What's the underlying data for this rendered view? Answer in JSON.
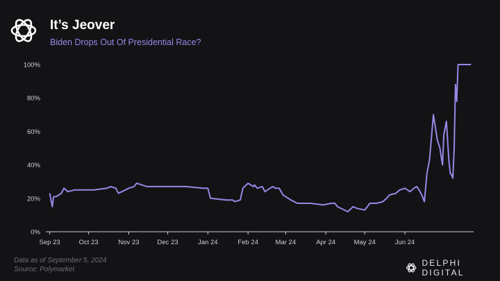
{
  "header": {
    "title": "It’s Jeover",
    "subtitle": "Biden Drops Out Of Presidential Race?"
  },
  "footer": {
    "line1": "Data as of September 5, 2024",
    "line2": "Source: Polymarket"
  },
  "brand": {
    "name": "DELPHI DIGITAL",
    "logo_icon": "delphi-flower-icon"
  },
  "header_logo_icon": "flower-knot-icon",
  "colors": {
    "background": "#131316",
    "line": "#9b86e6",
    "axis": "#cfcfd6",
    "text": "#ffffff"
  },
  "chart_data": {
    "type": "line",
    "title": "Biden Drops Out Of Presidential Race?",
    "xlabel": "",
    "ylabel": "",
    "ylim": [
      0,
      100
    ],
    "y_ticks": [
      "0%",
      "20%",
      "40%",
      "60%",
      "80%",
      "100%"
    ],
    "x_ticks": [
      "Sep 23",
      "Oct 23",
      "Nov 23",
      "Dec 23",
      "Jan 24",
      "Feb 24",
      "Mar 24",
      "Apr 24",
      "May 24",
      "Jun 24"
    ],
    "x_tick_dates": [
      "2023-09-01",
      "2023-10-01",
      "2023-11-01",
      "2023-12-01",
      "2024-01-01",
      "2024-02-01",
      "2024-03-01",
      "2024-04-01",
      "2024-05-01",
      "2024-06-01"
    ],
    "grid": false,
    "series": [
      {
        "x": [
          "2023-09-01",
          "2023-09-03",
          "2023-09-04",
          "2023-09-06",
          "2023-09-10",
          "2023-09-12",
          "2023-09-15",
          "2023-09-20",
          "2023-10-05",
          "2023-10-15",
          "2023-10-18",
          "2023-10-22",
          "2023-10-24",
          "2023-11-01",
          "2023-11-05",
          "2023-11-07",
          "2023-11-15",
          "2023-11-25",
          "2023-12-01",
          "2023-12-12",
          "2023-12-15",
          "2023-12-28",
          "2024-01-01",
          "2024-01-03",
          "2024-01-15",
          "2024-01-20",
          "2024-01-22",
          "2024-01-26",
          "2024-01-28",
          "2024-02-01",
          "2024-02-05",
          "2024-02-06",
          "2024-02-08",
          "2024-02-12",
          "2024-02-14",
          "2024-02-20",
          "2024-02-22",
          "2024-02-25",
          "2024-02-28",
          "2024-03-01",
          "2024-03-05",
          "2024-03-10",
          "2024-03-20",
          "2024-03-30",
          "2024-04-05",
          "2024-04-08",
          "2024-04-10",
          "2024-04-18",
          "2024-04-22",
          "2024-04-25",
          "2024-05-01",
          "2024-05-05",
          "2024-05-10",
          "2024-05-15",
          "2024-05-18",
          "2024-05-20",
          "2024-05-25",
          "2024-05-28",
          "2024-06-01",
          "2024-06-05",
          "2024-06-08",
          "2024-06-10",
          "2024-06-12",
          "2024-06-14",
          "2024-06-16",
          "2024-06-18",
          "2024-06-20",
          "2024-06-23",
          "2024-06-26",
          "2024-06-28",
          "2024-06-30",
          "2024-07-01",
          "2024-07-03",
          "2024-07-05",
          "2024-07-06",
          "2024-07-07",
          "2024-07-08",
          "2024-07-09",
          "2024-07-10",
          "2024-07-11",
          "2024-07-12",
          "2024-07-13",
          "2024-07-14",
          "2024-07-15",
          "2024-07-17",
          "2024-07-18",
          "2024-07-19",
          "2024-07-20",
          "2024-07-21",
          "2024-07-22"
        ],
        "values": [
          23,
          15,
          21,
          21,
          23,
          26,
          24,
          25,
          25,
          26,
          27,
          26,
          23,
          26,
          27,
          29,
          27,
          27,
          27,
          27,
          27,
          26,
          26,
          20,
          19,
          19,
          18,
          19,
          26,
          29,
          27,
          28,
          26,
          27,
          24,
          27,
          26,
          26,
          22,
          21,
          19,
          17,
          17,
          16,
          17,
          17,
          15,
          12,
          15,
          14,
          13,
          17,
          17,
          18,
          20,
          22,
          23,
          25,
          26,
          24,
          26,
          27,
          25,
          22,
          18,
          35,
          43,
          70,
          55,
          50,
          40,
          58,
          66,
          42,
          35,
          34,
          32,
          50,
          88,
          78,
          100,
          100,
          100,
          100,
          100,
          100,
          100,
          100,
          100,
          100
        ],
        "values_note": ""
      }
    ]
  }
}
